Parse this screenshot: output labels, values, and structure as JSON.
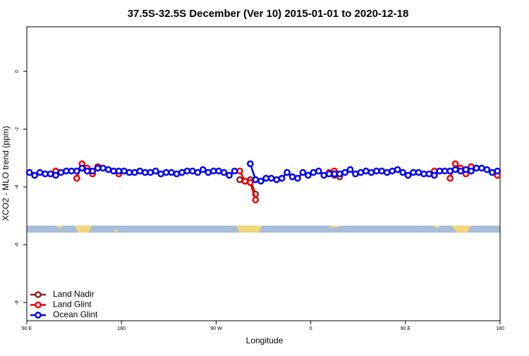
{
  "chart_data": {
    "type": "line",
    "title": "37.5S-32.5S December (Ver 10)   2015-01-01 to 2020-12-18",
    "x_label": "Longitude",
    "y_label": "XCO2 - MLO trend (ppm)",
    "xlim": [
      90,
      540
    ],
    "ylim": [
      -8.63,
      1.54
    ],
    "xticks": [
      {
        "value": 90,
        "label": "90 E"
      },
      180,
      {
        "value": 270,
        "label": "90 W"
      },
      {
        "value": 360,
        "label": "0"
      },
      {
        "value": 450,
        "label": "90 E"
      },
      {
        "value": 540,
        "label": "180"
      }
    ],
    "yticks": [
      0,
      -2,
      -4,
      -6,
      -8
    ],
    "legend": "lower left",
    "series": [
      {
        "name": "Land Nadir",
        "color": "#8b2323",
        "x": [
          292.5,
          297.5,
          302.5,
          307.5,
          null,
          377.5,
          382.5,
          387.5,
          null,
          502.5
        ],
        "values": [
          -3.75,
          -3.8,
          -3.75,
          -4.25,
          null,
          -3.55,
          -3.6,
          -3.65,
          null,
          -3.45
        ]
      },
      {
        "name": "Land Glint",
        "color": "#ee0000",
        "x": [
          117.5,
          null,
          137.5,
          142.5,
          147.5,
          152.5,
          157.5,
          null,
          177.5,
          null,
          292.5,
          297.5,
          302.5,
          307.5,
          null,
          377.5,
          382.5,
          null,
          477.5,
          null,
          492.5,
          497.5,
          502.5,
          507.5,
          512.5,
          null,
          537.5
        ],
        "values": [
          -3.45,
          null,
          -3.7,
          -3.2,
          -3.35,
          -3.55,
          -3.3,
          null,
          -3.55,
          null,
          -3.45,
          -3.8,
          -3.85,
          -4.45,
          null,
          -3.5,
          -3.45,
          null,
          -3.45,
          null,
          -3.7,
          -3.2,
          -3.35,
          -3.55,
          -3.3,
          null,
          -3.6
        ]
      },
      {
        "name": "Ocean Glint",
        "color": "#0000ee",
        "x": [
          92.5,
          97.5,
          102.5,
          107.5,
          112.5,
          117.5,
          122.5,
          127.5,
          132.5,
          137.5,
          142.5,
          147.5,
          152.5,
          157.5,
          162.5,
          167.5,
          172.5,
          177.5,
          182.5,
          187.5,
          192.5,
          197.5,
          202.5,
          207.5,
          212.5,
          217.5,
          222.5,
          227.5,
          232.5,
          237.5,
          242.5,
          247.5,
          252.5,
          257.5,
          262.5,
          267.5,
          272.5,
          277.5,
          282.5,
          287.5,
          292.5,
          297.5,
          302.5,
          307.5,
          312.5,
          317.5,
          322.5,
          327.5,
          332.5,
          337.5,
          342.5,
          347.5,
          352.5,
          357.5,
          362.5,
          367.5,
          372.5,
          377.5,
          382.5,
          387.5,
          392.5,
          397.5,
          402.5,
          407.5,
          412.5,
          417.5,
          422.5,
          427.5,
          432.5,
          437.5,
          442.5,
          447.5,
          452.5,
          457.5,
          462.5,
          467.5,
          472.5,
          477.5,
          482.5,
          487.5,
          492.5,
          497.5,
          502.5,
          507.5,
          512.5,
          517.5,
          522.5,
          527.5,
          532.5,
          537.5
        ],
        "values": [
          -3.5,
          -3.6,
          -3.5,
          -3.55,
          -3.55,
          -3.6,
          -3.5,
          -3.45,
          -3.45,
          -3.45,
          -3.35,
          -3.45,
          -3.45,
          -3.35,
          -3.35,
          -3.4,
          -3.45,
          -3.45,
          -3.45,
          -3.5,
          -3.5,
          -3.45,
          -3.5,
          -3.5,
          -3.45,
          -3.55,
          -3.5,
          -3.5,
          -3.55,
          -3.5,
          -3.45,
          -3.45,
          -3.5,
          -3.4,
          -3.5,
          -3.45,
          -3.45,
          -3.5,
          -3.6,
          -3.45,
          null,
          null,
          -3.2,
          -3.75,
          -3.8,
          -3.7,
          -3.7,
          -3.75,
          -3.7,
          -3.5,
          -3.65,
          -3.7,
          -3.5,
          -3.6,
          -3.5,
          -3.45,
          -3.6,
          -3.55,
          -3.55,
          -3.55,
          -3.5,
          -3.4,
          -3.55,
          -3.5,
          -3.45,
          -3.5,
          -3.45,
          -3.45,
          -3.5,
          -3.45,
          -3.4,
          -3.5,
          -3.6,
          -3.5,
          -3.5,
          -3.55,
          -3.55,
          -3.6,
          -3.45,
          -3.45,
          -3.45,
          -3.4,
          -3.45,
          -3.4,
          -3.45,
          -3.35,
          -3.35,
          -3.4,
          -3.5,
          -3.45
        ]
      }
    ]
  }
}
